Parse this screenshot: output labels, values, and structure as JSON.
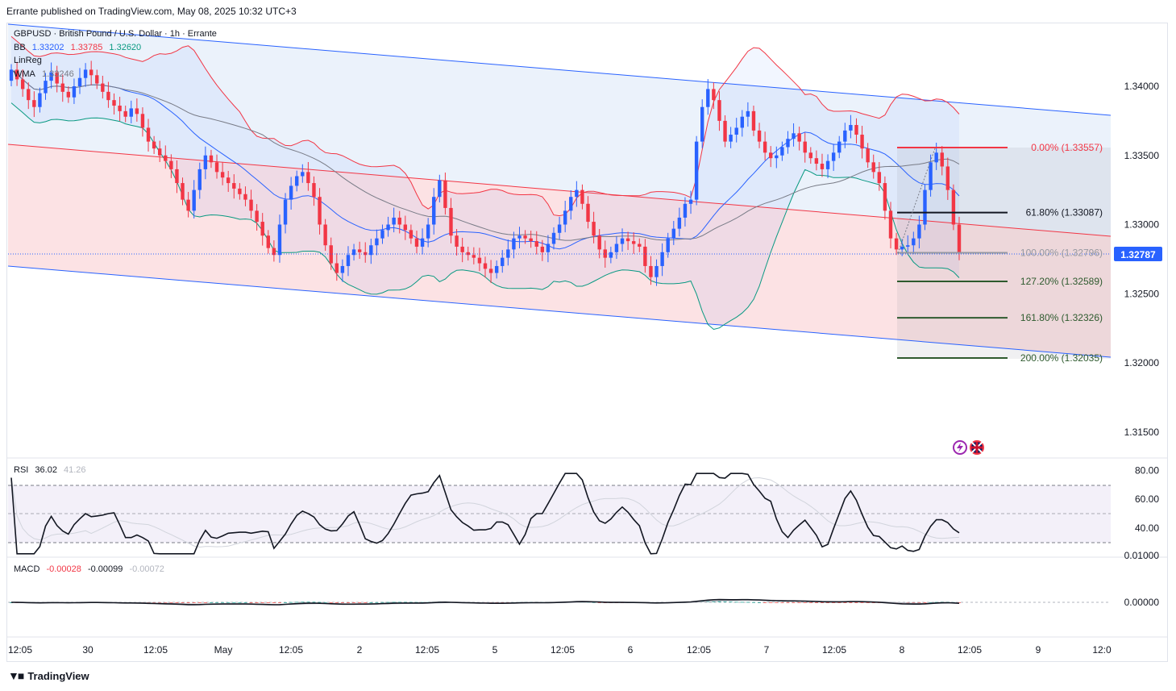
{
  "header": {
    "published": "Errante published on TradingView.com, May 08, 2025 10:32 UTC+3",
    "symbol_line": "GBPUSD · British Pound / U.S. Dollar · 1h · Errante"
  },
  "legend": {
    "bb_label": "BB",
    "bb_values": [
      "1.33202",
      "1.33785",
      "1.32620"
    ],
    "linreg_label": "LinReg",
    "wma_label": "WMA",
    "wma_value": "1.33246"
  },
  "price_axis": {
    "ticks": [
      "1.34000",
      "1.33500",
      "1.33000",
      "1.32500",
      "1.32000",
      "1.31500"
    ],
    "current_price": "1.32787"
  },
  "fib_levels": [
    {
      "label": "0.00% (1.33557)",
      "value": 1.33557,
      "color": "#f23645"
    },
    {
      "label": "61.80% (1.33087)",
      "value": 1.33087,
      "color": "#131722"
    },
    {
      "label": "100.00% (1.32796)",
      "value": 1.32796,
      "color": "#9598a1"
    },
    {
      "label": "127.20% (1.32589)",
      "value": 1.32589,
      "color": "#2e5a2e"
    },
    {
      "label": "161.80% (1.32326)",
      "value": 1.32326,
      "color": "#2e5a2e"
    },
    {
      "label": "200.00% (1.32035)",
      "value": 1.32035,
      "color": "#2e5a2e"
    }
  ],
  "rsi": {
    "label": "RSI",
    "value": "36.02",
    "ma_value": "41.26",
    "ticks": [
      "80.00",
      "60.00",
      "40.00"
    ]
  },
  "macd": {
    "label": "MACD",
    "values": [
      "-0.00028",
      "-0.00099",
      "-0.00072"
    ],
    "ticks": [
      "0.01000",
      "0.00000"
    ]
  },
  "time_axis": [
    "12:05",
    "30",
    "12:05",
    "May",
    "12:05",
    "2",
    "12:05",
    "5",
    "12:05",
    "6",
    "12:05",
    "7",
    "12:05",
    "8",
    "12:05",
    "9",
    "12:0"
  ],
  "footer": {
    "brand": "TradingView"
  },
  "colors": {
    "up": "#2962ff",
    "down": "#f23645",
    "bb_upper": "#f23645",
    "bb_lower": "#089981",
    "bb_basis": "#2962ff",
    "wma": "#787b86",
    "channel_line": "#2962ff",
    "channel_mid": "#f23645",
    "rsi_line": "#131722",
    "rsi_band": "#7e57c2"
  },
  "chart_data": {
    "type": "candlestick",
    "symbol": "GBPUSD",
    "timeframe": "1h",
    "price_range": [
      1.3135,
      1.3425
    ],
    "ohlc_close": [
      1.3412,
      1.3405,
      1.3398,
      1.339,
      1.3385,
      1.3395,
      1.3404,
      1.341,
      1.3402,
      1.3396,
      1.3392,
      1.34,
      1.3406,
      1.3412,
      1.3408,
      1.3402,
      1.3396,
      1.339,
      1.3386,
      1.3382,
      1.3378,
      1.3384,
      1.338,
      1.337,
      1.336,
      1.3355,
      1.335,
      1.3346,
      1.334,
      1.333,
      1.3318,
      1.331,
      1.3325,
      1.334,
      1.335,
      1.3345,
      1.3338,
      1.3334,
      1.333,
      1.3326,
      1.3322,
      1.3318,
      1.331,
      1.3302,
      1.3292,
      1.3283,
      1.3278,
      1.33,
      1.3318,
      1.3328,
      1.3335,
      1.3338,
      1.333,
      1.332,
      1.33,
      1.3285,
      1.3272,
      1.3265,
      1.327,
      1.3278,
      1.3282,
      1.328,
      1.3278,
      1.3285,
      1.329,
      1.3296,
      1.33,
      1.3305,
      1.33,
      1.3296,
      1.329,
      1.3284,
      1.329,
      1.33,
      1.332,
      1.3332,
      1.3312,
      1.3292,
      1.3284,
      1.328,
      1.3278,
      1.3276,
      1.3272,
      1.3268,
      1.3265,
      1.327,
      1.3276,
      1.3282,
      1.329,
      1.3292,
      1.329,
      1.3288,
      1.3284,
      1.328,
      1.3286,
      1.3294,
      1.33,
      1.331,
      1.332,
      1.3325,
      1.3315,
      1.3302,
      1.3292,
      1.3282,
      1.3276,
      1.328,
      1.3286,
      1.329,
      1.3288,
      1.3286,
      1.3284,
      1.327,
      1.3262,
      1.327,
      1.328,
      1.329,
      1.3297,
      1.3305,
      1.3315,
      1.3318,
      1.336,
      1.3385,
      1.3398,
      1.339,
      1.3375,
      1.336,
      1.3365,
      1.337,
      1.3378,
      1.3382,
      1.3368,
      1.336,
      1.3352,
      1.3348,
      1.335,
      1.3356,
      1.3362,
      1.3366,
      1.336,
      1.3352,
      1.3348,
      1.3344,
      1.334,
      1.3346,
      1.3352,
      1.336,
      1.3368,
      1.3372,
      1.3365,
      1.3355,
      1.3345,
      1.3338,
      1.333,
      1.331,
      1.329,
      1.3282,
      1.3284,
      1.3285,
      1.329,
      1.33,
      1.3325,
      1.3345,
      1.3352,
      1.3342,
      1.3325,
      1.33,
      1.3279
    ]
  }
}
